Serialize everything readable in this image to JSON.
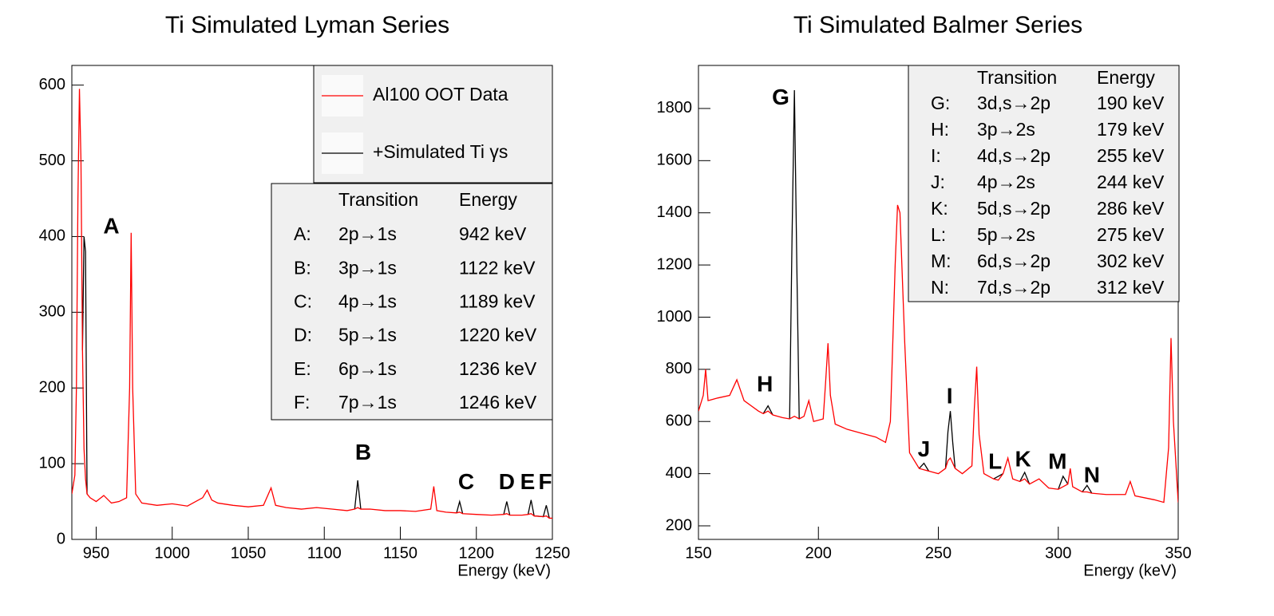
{
  "chart_data": [
    {
      "type": "line",
      "title": "Ti Simulated Lyman Series",
      "x_label": "Energy (keV)",
      "x": [
        934,
        936,
        937,
        938,
        939,
        940,
        941,
        942,
        943,
        944,
        946,
        950,
        955,
        960,
        965,
        970,
        972,
        973,
        974,
        976,
        980,
        990,
        1000,
        1010,
        1020,
        1023,
        1026,
        1030,
        1040,
        1050,
        1060,
        1065,
        1068,
        1075,
        1085,
        1095,
        1105,
        1115,
        1120,
        1122,
        1124,
        1130,
        1140,
        1150,
        1160,
        1170,
        1172,
        1174,
        1180,
        1187,
        1189,
        1191,
        1200,
        1210,
        1218,
        1220,
        1222,
        1230,
        1234,
        1236,
        1238,
        1244,
        1246,
        1248,
        1250
      ],
      "series": [
        {
          "name": "+Simulated Ti γs",
          "color": "#000000",
          "values": [
            null,
            null,
            null,
            null,
            null,
            null,
            250,
            400,
            380,
            60,
            null,
            null,
            null,
            null,
            null,
            null,
            null,
            null,
            null,
            null,
            null,
            null,
            null,
            null,
            null,
            null,
            null,
            null,
            null,
            null,
            null,
            null,
            null,
            null,
            null,
            null,
            null,
            null,
            40,
            78,
            40,
            null,
            null,
            null,
            null,
            null,
            null,
            null,
            null,
            35,
            50,
            34,
            null,
            null,
            33,
            50,
            32,
            null,
            33,
            52,
            31,
            30,
            45,
            28,
            null
          ]
        },
        {
          "name": "Al100 OOT Data",
          "color": "#ff0000",
          "values": [
            60,
            85,
            200,
            450,
            595,
            500,
            250,
            120,
            80,
            60,
            55,
            50,
            58,
            48,
            50,
            55,
            200,
            405,
            200,
            60,
            48,
            45,
            47,
            44,
            55,
            65,
            52,
            48,
            45,
            43,
            45,
            68,
            45,
            42,
            40,
            42,
            40,
            38,
            40,
            42,
            40,
            40,
            38,
            38,
            37,
            40,
            70,
            38,
            36,
            35,
            36,
            34,
            33,
            32,
            33,
            34,
            32,
            32,
            33,
            34,
            31,
            30,
            31,
            28,
            28
          ]
        }
      ],
      "legend_order": [
        1,
        0
      ],
      "xlim": [
        934,
        1250
      ],
      "ylim": [
        0,
        626
      ],
      "xticks": [
        950,
        1000,
        1050,
        1100,
        1150,
        1200,
        1250
      ],
      "yticks": [
        0,
        100,
        200,
        300,
        400,
        500,
        600
      ],
      "annotations": [
        {
          "text": "A",
          "x": 960,
          "y": 412
        },
        {
          "text": "B",
          "x": 1125.6,
          "y": 113
        },
        {
          "text": "C",
          "x": 1193.3,
          "y": 74
        },
        {
          "text": "D",
          "x": 1220,
          "y": 74
        },
        {
          "text": "E",
          "x": 1233.7,
          "y": 74
        },
        {
          "text": "F",
          "x": 1245.3,
          "y": 74
        }
      ],
      "table": {
        "header": [
          "Transition",
          "Energy"
        ],
        "rows": [
          [
            "A:",
            "2p→1s",
            "942 keV"
          ],
          [
            "B:",
            "3p→1s",
            "1122 keV"
          ],
          [
            "C:",
            "4p→1s",
            "1189 keV"
          ],
          [
            "D:",
            "5p→1s",
            "1220 keV"
          ],
          [
            "E:",
            "6p→1s",
            "1236 keV"
          ],
          [
            "F:",
            "7p→1s",
            "1246 keV"
          ]
        ]
      }
    },
    {
      "type": "line",
      "title": "Ti Simulated Balmer Series",
      "x_label": "Energy (keV)",
      "x": [
        150,
        152,
        153,
        154,
        158,
        163,
        166,
        169,
        175,
        177,
        179,
        181,
        185,
        188,
        189,
        190,
        191,
        192,
        194,
        196,
        198,
        202,
        203,
        204,
        205,
        207,
        212,
        218,
        224,
        228,
        230,
        232,
        233,
        234,
        236,
        238,
        242,
        244,
        246,
        250,
        253,
        254,
        255,
        256,
        257,
        260,
        264,
        265,
        266,
        267,
        269,
        273,
        275,
        277,
        279,
        281,
        284,
        286,
        288,
        292,
        296,
        300,
        302,
        304,
        305,
        306,
        310,
        312,
        314,
        320,
        328,
        330,
        332,
        340,
        344,
        346,
        347,
        348,
        350
      ],
      "series": [
        {
          "color": "#000000",
          "values": [
            null,
            null,
            null,
            null,
            null,
            null,
            null,
            null,
            null,
            630,
            660,
            625,
            null,
            610,
            1300,
            1870,
            1200,
            610,
            null,
            null,
            null,
            null,
            null,
            null,
            null,
            null,
            null,
            null,
            null,
            null,
            null,
            null,
            null,
            null,
            null,
            null,
            420,
            440,
            410,
            null,
            420,
            560,
            640,
            520,
            420,
            null,
            null,
            null,
            null,
            null,
            null,
            380,
            390,
            400,
            null,
            null,
            370,
            405,
            360,
            null,
            null,
            340,
            390,
            360,
            null,
            null,
            330,
            355,
            325,
            null,
            null,
            null,
            null,
            null,
            null,
            null,
            null,
            null,
            null
          ]
        },
        {
          "color": "#ff0000",
          "values": [
            640,
            700,
            800,
            680,
            690,
            700,
            760,
            680,
            640,
            630,
            640,
            625,
            615,
            610,
            615,
            620,
            615,
            610,
            620,
            680,
            600,
            610,
            750,
            900,
            700,
            590,
            570,
            555,
            540,
            520,
            600,
            1200,
            1430,
            1400,
            900,
            480,
            420,
            415,
            410,
            400,
            420,
            450,
            460,
            440,
            420,
            400,
            430,
            650,
            810,
            550,
            400,
            380,
            375,
            400,
            460,
            380,
            370,
            380,
            360,
            380,
            345,
            340,
            350,
            360,
            420,
            350,
            330,
            330,
            325,
            320,
            320,
            370,
            315,
            300,
            290,
            500,
            920,
            600,
            290
          ]
        }
      ],
      "xlim": [
        150,
        350
      ],
      "ylim": [
        148,
        1965
      ],
      "xticks": [
        150,
        200,
        250,
        300,
        350
      ],
      "yticks": [
        200,
        400,
        600,
        800,
        1000,
        1200,
        1400,
        1600,
        1800
      ],
      "annotations": [
        {
          "text": "G",
          "x": 184.3,
          "y": 1837
        },
        {
          "text": "H",
          "x": 177.7,
          "y": 738
        },
        {
          "text": "I",
          "x": 254.7,
          "y": 692
        },
        {
          "text": "J",
          "x": 244,
          "y": 488
        },
        {
          "text": "L",
          "x": 273.7,
          "y": 442
        },
        {
          "text": "K",
          "x": 285.3,
          "y": 451
        },
        {
          "text": "M",
          "x": 299.7,
          "y": 442
        },
        {
          "text": "N",
          "x": 314,
          "y": 390
        }
      ],
      "table": {
        "header": [
          "Transition",
          "Energy"
        ],
        "rows": [
          [
            "G:",
            "3d,s→2p",
            "190 keV"
          ],
          [
            "H:",
            "3p→2s",
            "179 keV"
          ],
          [
            "I:",
            "4d,s→2p",
            "255 keV"
          ],
          [
            "J:",
            "4p→2s",
            "244 keV"
          ],
          [
            "K:",
            "5d,s→2p",
            "286 keV"
          ],
          [
            "L:",
            "5p→2s",
            "275 keV"
          ],
          [
            "M:",
            "6d,s→2p",
            "302 keV"
          ],
          [
            "N:",
            "7d,s→2p",
            "312 keV"
          ]
        ]
      }
    }
  ]
}
